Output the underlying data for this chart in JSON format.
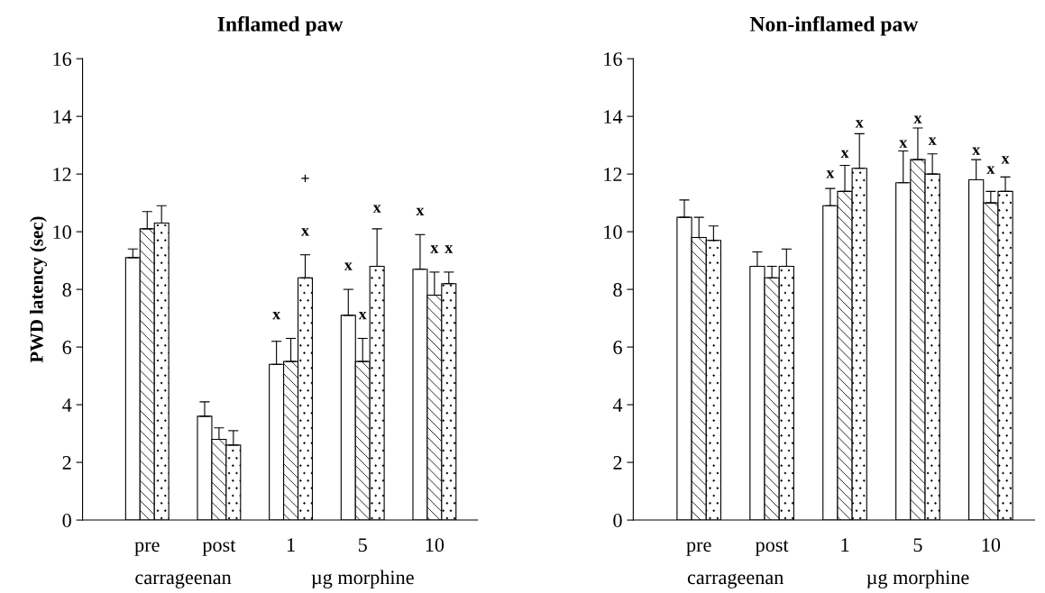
{
  "chart_data": [
    {
      "type": "bar",
      "title": "Inflamed paw",
      "ylabel": "PWD latency (sec)",
      "categories": [
        "pre",
        "post",
        "1",
        "5",
        "10"
      ],
      "ylim": [
        0,
        16
      ],
      "yticks": [
        0,
        2,
        4,
        6,
        8,
        10,
        12,
        14,
        16
      ],
      "grid": false,
      "series": [
        {
          "color": "#ffffff",
          "values": [
            9.1,
            3.6,
            5.4,
            7.1,
            8.7
          ],
          "errors": [
            [
              9.1,
              9.4
            ],
            [
              3.6,
              4.1
            ],
            [
              5.4,
              6.2
            ],
            [
              7.1,
              8.0
            ],
            [
              8.7,
              9.9
            ]
          ]
        },
        {
          "color": "#ffffff",
          "values": [
            10.1,
            2.8,
            5.5,
            5.5,
            7.8
          ],
          "errors": [
            [
              10.1,
              10.7
            ],
            [
              2.8,
              3.2
            ],
            [
              5.5,
              6.3
            ],
            [
              5.5,
              6.3
            ],
            [
              7.8,
              8.6
            ]
          ]
        },
        {
          "color": "#ffffff",
          "values": [
            10.3,
            2.6,
            8.4,
            8.8,
            8.2
          ],
          "errors": [
            [
              10.3,
              10.9
            ],
            [
              2.6,
              3.1
            ],
            [
              8.4,
              9.2
            ],
            [
              8.8,
              10.1
            ],
            [
              8.2,
              8.6
            ]
          ]
        }
      ],
      "annotations": [
        "x",
        "x",
        "+",
        "x",
        "x",
        "x",
        "x",
        "x",
        "x",
        "carrageenan",
        "µg morphine"
      ]
    },
    {
      "type": "bar",
      "title": "Non-inflamed paw",
      "categories": [
        "pre",
        "post",
        "1",
        "5",
        "10"
      ],
      "ylim": [
        0,
        16
      ],
      "yticks": [
        0,
        2,
        4,
        6,
        8,
        10,
        12,
        14,
        16
      ],
      "grid": false,
      "series": [
        {
          "color": "#ffffff",
          "values": [
            10.5,
            8.8,
            10.9,
            11.7,
            11.8
          ],
          "errors": [
            [
              10.5,
              11.1
            ],
            [
              8.8,
              9.3
            ],
            [
              10.9,
              11.5
            ],
            [
              11.7,
              12.8
            ],
            [
              11.8,
              12.5
            ]
          ]
        },
        {
          "color": "#ffffff",
          "values": [
            9.8,
            8.4,
            11.4,
            12.5,
            11.0
          ],
          "errors": [
            [
              9.8,
              10.5
            ],
            [
              8.4,
              8.8
            ],
            [
              11.4,
              12.3
            ],
            [
              12.5,
              13.6
            ],
            [
              11.0,
              11.4
            ]
          ]
        },
        {
          "color": "#ffffff",
          "values": [
            9.7,
            8.8,
            12.2,
            12.0,
            11.4
          ],
          "errors": [
            [
              9.7,
              10.2
            ],
            [
              8.8,
              9.4
            ],
            [
              12.2,
              13.4
            ],
            [
              12.0,
              12.7
            ],
            [
              11.4,
              11.9
            ]
          ]
        }
      ],
      "annotations": [
        "x",
        "x",
        "x",
        "x",
        "x",
        "x",
        "x",
        "x",
        "x",
        "carrageenan",
        "µg morphine"
      ]
    }
  ]
}
